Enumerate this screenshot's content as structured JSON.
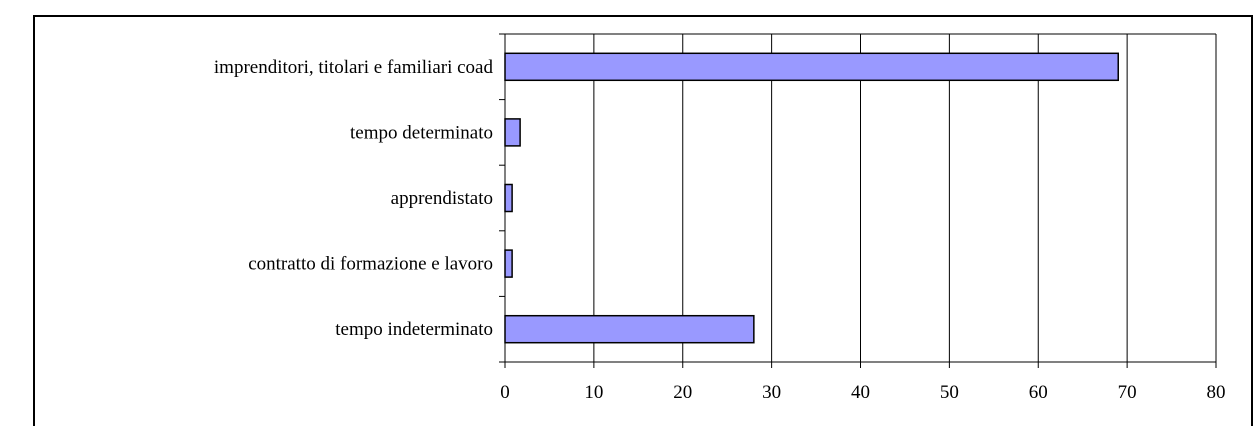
{
  "chart_data": {
    "type": "bar",
    "orientation": "horizontal",
    "categories": [
      "imprenditori, titolari e familiari coad",
      "tempo determinato",
      "apprendistato",
      "contratto di formazione e lavoro",
      "tempo indeterminato"
    ],
    "values": [
      69,
      1.7,
      0.8,
      0.8,
      28
    ],
    "xlim": [
      0,
      80
    ],
    "xticks": [
      "0",
      "10",
      "20",
      "30",
      "40",
      "50",
      "60",
      "70",
      "80"
    ],
    "grid": "vertical",
    "legend": "none",
    "title": "",
    "xlabel": "",
    "ylabel": ""
  },
  "colors": {
    "bar_fill": "#9999ff",
    "bar_stroke": "#000000",
    "grid": "#000000"
  }
}
